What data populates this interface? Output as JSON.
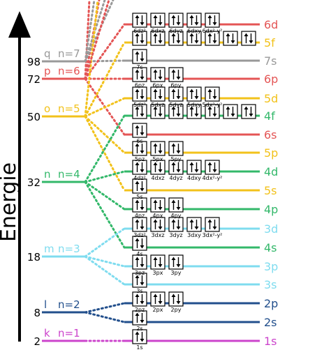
{
  "axis_label": "Energie",
  "colors": {
    "k": "#cc44cc",
    "l": "#224f8c",
    "m": "#7fdcef",
    "n": "#33b86a",
    "o": "#f2c21b",
    "p": "#e45555",
    "q": "#999999"
  },
  "shells": [
    {
      "letter": "k",
      "n_text": "n=1",
      "value": "2",
      "color_key": "k"
    },
    {
      "letter": "l",
      "n_text": "n=2",
      "value": "8",
      "color_key": "l"
    },
    {
      "letter": "m",
      "n_text": "n=3",
      "value": "18",
      "color_key": "m"
    },
    {
      "letter": "n",
      "n_text": "n=4",
      "value": "32",
      "color_key": "n"
    },
    {
      "letter": "o",
      "n_text": "n=5",
      "value": "50",
      "color_key": "o"
    },
    {
      "letter": "p",
      "n_text": "n=6",
      "value": "72",
      "color_key": "p"
    },
    {
      "letter": "q",
      "n_text": "n=7",
      "value": "98",
      "color_key": "q"
    }
  ],
  "subshells": [
    {
      "label": "1s",
      "shell": 1,
      "color_key": "k",
      "orbitals": [
        "1s"
      ]
    },
    {
      "label": "2s",
      "shell": 2,
      "color_key": "l",
      "orbitals": [
        "2s"
      ]
    },
    {
      "label": "2p",
      "shell": 2,
      "color_key": "l",
      "orbitals": [
        "2pz",
        "2px",
        "2py"
      ]
    },
    {
      "label": "3s",
      "shell": 3,
      "color_key": "m",
      "orbitals": [
        "3s"
      ]
    },
    {
      "label": "3p",
      "shell": 3,
      "color_key": "m",
      "orbitals": [
        "3pz",
        "3px",
        "3py"
      ]
    },
    {
      "label": "4s",
      "shell": 4,
      "color_key": "n",
      "orbitals": [
        "4s"
      ]
    },
    {
      "label": "3d",
      "shell": 3,
      "color_key": "m",
      "orbitals": [
        "3dz²",
        "3dxz",
        "3dyz",
        "3dxy",
        "3dx²-y²"
      ]
    },
    {
      "label": "4p",
      "shell": 4,
      "color_key": "n",
      "orbitals": [
        "4pz",
        "4px",
        "4py"
      ]
    },
    {
      "label": "5s",
      "shell": 5,
      "color_key": "o",
      "orbitals": [
        "5s"
      ]
    },
    {
      "label": "4d",
      "shell": 4,
      "color_key": "n",
      "orbitals": [
        "4dz²",
        "4dxz",
        "4dyz",
        "4dxy",
        "4dx²-y²"
      ]
    },
    {
      "label": "5p",
      "shell": 5,
      "color_key": "o",
      "orbitals": [
        "5pz",
        "5px",
        "5py"
      ]
    },
    {
      "label": "6s",
      "shell": 6,
      "color_key": "p",
      "orbitals": [
        "6s"
      ]
    },
    {
      "label": "4f",
      "shell": 4,
      "color_key": "n",
      "orbitals": [
        "",
        "",
        "",
        "",
        "",
        "",
        ""
      ]
    },
    {
      "label": "5d",
      "shell": 5,
      "color_key": "o",
      "orbitals": [
        "5dz²",
        "5dxz",
        "5dyz",
        "5dxy",
        "5dx²-y²"
      ]
    },
    {
      "label": "6p",
      "shell": 6,
      "color_key": "p",
      "orbitals": [
        "6pz",
        "6px",
        "6py"
      ]
    },
    {
      "label": "7s",
      "shell": 7,
      "color_key": "q",
      "orbitals": [
        "7s"
      ]
    },
    {
      "label": "5f",
      "shell": 5,
      "color_key": "o",
      "orbitals": [
        "",
        "",
        "",
        "",
        "",
        "",
        ""
      ]
    },
    {
      "label": "6d",
      "shell": 6,
      "color_key": "p",
      "orbitals": [
        "6dz²",
        "6dxz",
        "6dyz",
        "6dxy",
        "6dx²-y²"
      ]
    }
  ]
}
